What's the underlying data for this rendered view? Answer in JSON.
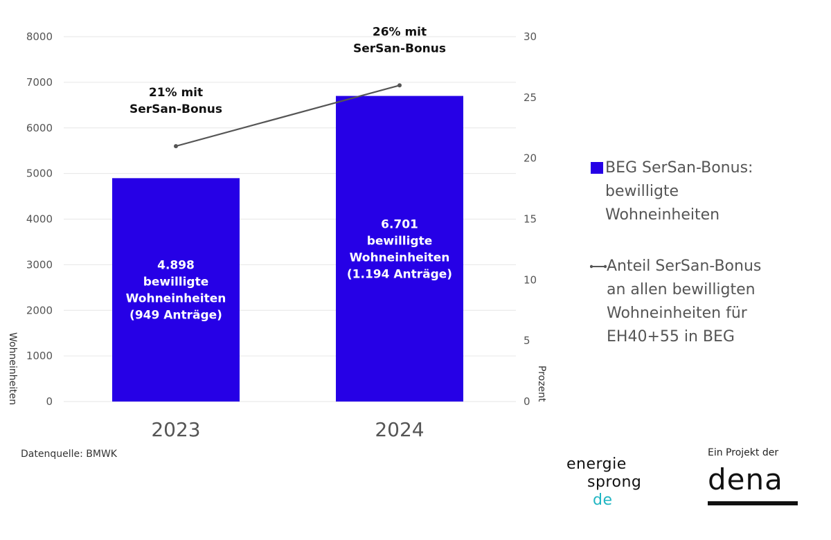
{
  "chart_data": {
    "type": "bar",
    "categories": [
      "2023",
      "2024"
    ],
    "series": [
      {
        "name": "BEG SerSan-Bonus: bewilligte Wohneinheiten",
        "type": "bar",
        "axis": "left",
        "values": [
          4898,
          6701
        ],
        "color": "#2600e6"
      },
      {
        "name": "Anteil SerSan-Bonus an allen bewilligten Wohneinheiten für EH40+55 in BEG",
        "type": "line",
        "axis": "right",
        "values": [
          21,
          26
        ],
        "color": "#555555"
      }
    ],
    "bar_labels": [
      [
        "4.898",
        "bewilligte",
        "Wohneinheiten",
        "(949 Anträge)"
      ],
      [
        "6.701",
        "bewilligte",
        "Wohneinheiten",
        "(1.194 Anträge)"
      ]
    ],
    "line_annotations": [
      [
        "21% mit",
        "SerSan-Bonus"
      ],
      [
        "26% mit",
        "SerSan-Bonus"
      ]
    ],
    "y_left": {
      "label": "Wohneinheiten",
      "min": 0,
      "max": 8000,
      "ticks": [
        "0",
        "1000",
        "2000",
        "3000",
        "4000",
        "5000",
        "6000",
        "7000",
        "8000"
      ]
    },
    "y_right": {
      "label": "Prozent",
      "min": 0,
      "max": 30,
      "ticks": [
        "0",
        "5",
        "10",
        "15",
        "20",
        "25",
        "30"
      ]
    },
    "grid": true,
    "legend_position": "right"
  },
  "legend": {
    "bar_lines": [
      "BEG SerSan-Bonus:",
      "bewilligte",
      "Wohneinheiten"
    ],
    "line_lines": [
      "Anteil SerSan-Bonus",
      "an allen bewilligten",
      "Wohneinheiten für",
      "EH40+55 in BEG"
    ]
  },
  "source": "Datenquelle: BMWK",
  "logos": {
    "energiesprong": {
      "word1": "energie",
      "word2": "sprong",
      "word3": "de",
      "accent": "#1fb5c2"
    },
    "dena": {
      "intro": "Ein Projekt der",
      "word": "dena"
    }
  }
}
